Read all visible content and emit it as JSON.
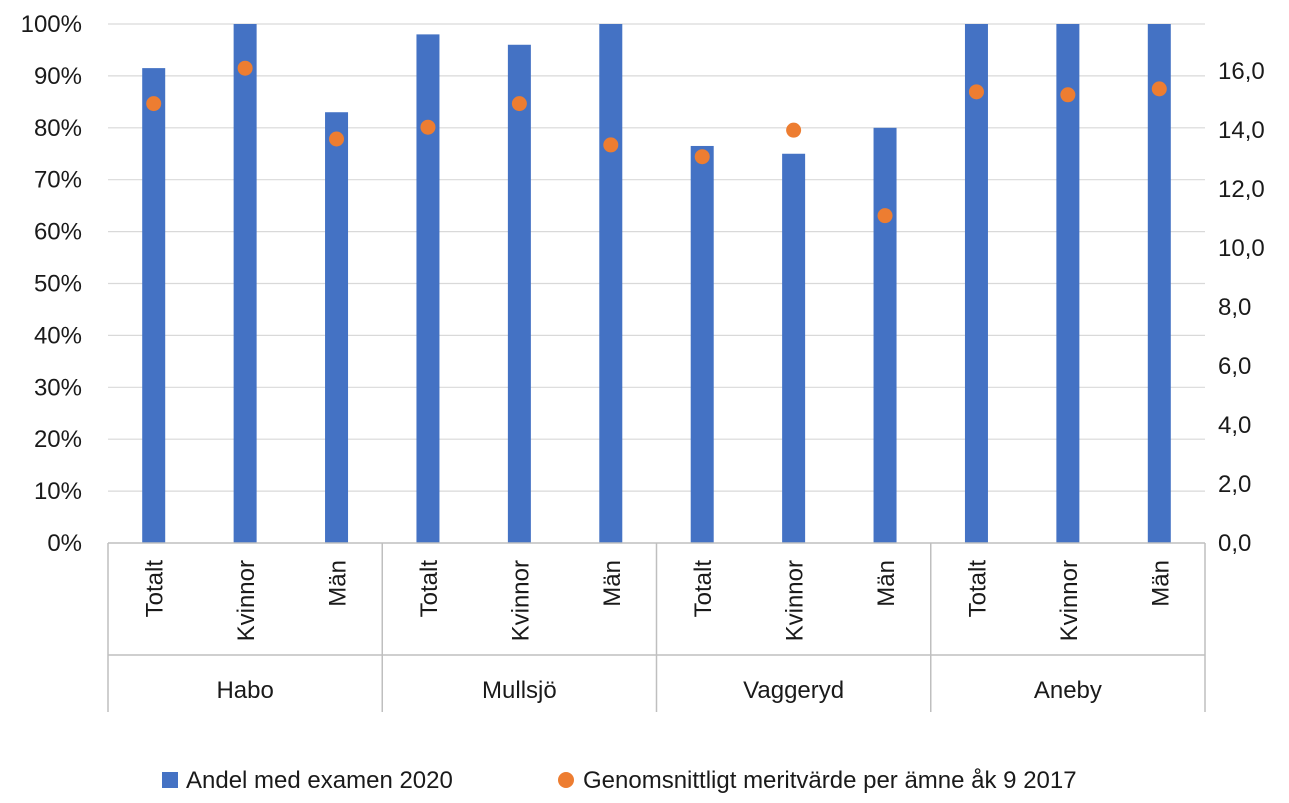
{
  "chart_data": {
    "type": "bar",
    "groups": [
      "Habo",
      "Mullsjö",
      "Vaggeryd",
      "Aneby"
    ],
    "subcategories": [
      "Totalt",
      "Kvinnor",
      "Män"
    ],
    "y_left": {
      "lim": [
        0,
        100
      ],
      "ticks": [
        "0%",
        "10%",
        "20%",
        "30%",
        "40%",
        "50%",
        "60%",
        "70%",
        "80%",
        "90%",
        "100%"
      ]
    },
    "y_right": {
      "lim": [
        0,
        17.6
      ],
      "ticks": [
        "0,0",
        "2,0",
        "4,0",
        "6,0",
        "8,0",
        "10,0",
        "12,0",
        "14,0",
        "16,0"
      ]
    },
    "grid": true,
    "legend_position": "bottom",
    "series": [
      {
        "name": "Andel med examen 2020",
        "kind": "bar",
        "axis": "left",
        "color": "#4472C4",
        "values": [
          91.5,
          100,
          83,
          98,
          96,
          100,
          76.5,
          75,
          80,
          100,
          100,
          100
        ]
      },
      {
        "name": "Genomsnittligt meritvärde per ämne åk 9 2017",
        "kind": "scatter",
        "axis": "right",
        "color": "#ED7D31",
        "values": [
          14.9,
          16.1,
          13.7,
          14.1,
          14.9,
          13.5,
          13.1,
          14.0,
          11.1,
          15.3,
          15.2,
          15.4
        ]
      }
    ]
  }
}
